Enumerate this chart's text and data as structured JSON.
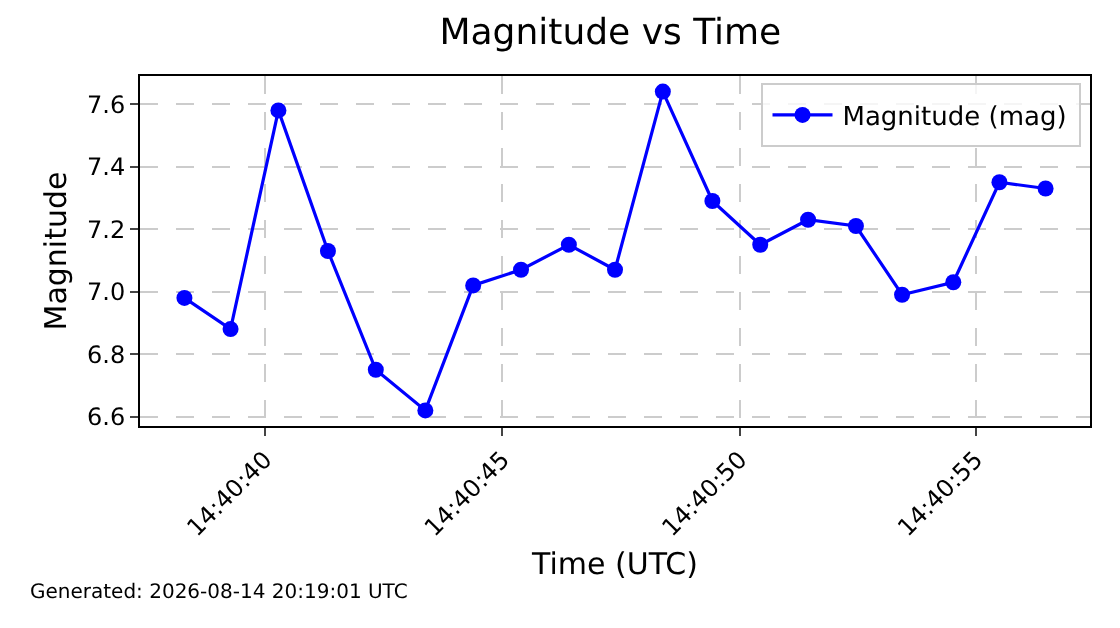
{
  "chart_data": {
    "type": "line",
    "title": "Magnitude vs Time",
    "xlabel": "Time (UTC)",
    "ylabel": "Magnitude",
    "annotations": [
      "Generated: 2026-08-14 20:19:01 UTC"
    ],
    "x": [
      14.67731,
      14.67758,
      14.67786,
      14.67815,
      14.67843,
      14.67872,
      14.679,
      14.67928,
      14.67956,
      14.67983,
      14.68011,
      14.6804,
      14.68068,
      14.68096,
      14.68124,
      14.68151,
      14.68181,
      14.68208,
      14.68235
    ],
    "series": [
      {
        "name": "Magnitude (mag)",
        "color": "#0000ff",
        "values": [
          6.98,
          6.88,
          7.58,
          7.13,
          6.75,
          6.62,
          7.02,
          7.07,
          7.15,
          7.07,
          7.64,
          7.29,
          7.15,
          7.23,
          7.21,
          6.99,
          7.03,
          7.35,
          7.33
        ]
      }
    ],
    "xlim": [
      14.67705,
      14.68261
    ],
    "xticks": [
      {
        "value": 14.67778,
        "label": "14:40:40"
      },
      {
        "value": 14.67917,
        "label": "14:40:45"
      },
      {
        "value": 14.68056,
        "label": "14:40:50"
      },
      {
        "value": 14.68194,
        "label": "14:40:55"
      }
    ],
    "ylim": [
      6.57,
      7.69
    ],
    "yticks": [
      6.6,
      6.8,
      {
        "value": 7,
        "label": "7.0"
      },
      7.2,
      7.4,
      7.6
    ],
    "grid": true,
    "legend": "top right",
    "marker": "circle",
    "line_style": "solid"
  }
}
